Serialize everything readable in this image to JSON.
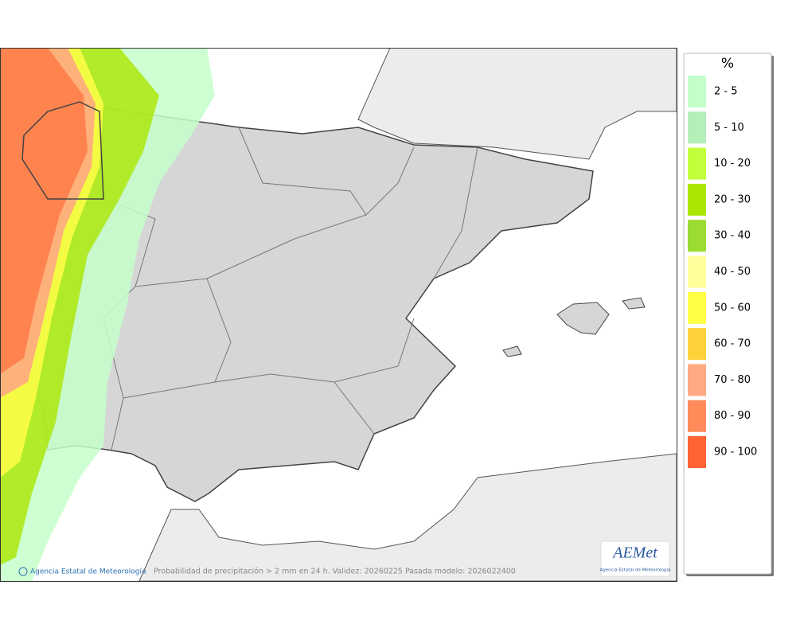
{
  "map": {
    "caption": "Probabilidad de precipitación > 2 mm en 24 h. Validez: 20260225 Pasada modelo: 2026022400",
    "credit": "Agencia Estatal de Meteorología"
  },
  "legend": {
    "title": "%",
    "items": [
      {
        "label": "2 - 5",
        "color": "#c4ffca"
      },
      {
        "label": "5 - 10",
        "color": "#b4eeb8"
      },
      {
        "label": "10 - 20",
        "color": "#c4ff3c"
      },
      {
        "label": "20 - 30",
        "color": "#aae600"
      },
      {
        "label": "30 - 40",
        "color": "#9cdc32"
      },
      {
        "label": "40 - 50",
        "color": "#ffff9c"
      },
      {
        "label": "50 - 60",
        "color": "#ffff46"
      },
      {
        "label": "60 - 70",
        "color": "#ffd23c"
      },
      {
        "label": "70 - 80",
        "color": "#ffaa82"
      },
      {
        "label": "80 - 90",
        "color": "#ff8a5a"
      },
      {
        "label": "90 - 100",
        "color": "#ff6432"
      }
    ]
  },
  "logo": {
    "name": "AEMet",
    "subtitle": "Agencia Estatal de Meteorología"
  }
}
